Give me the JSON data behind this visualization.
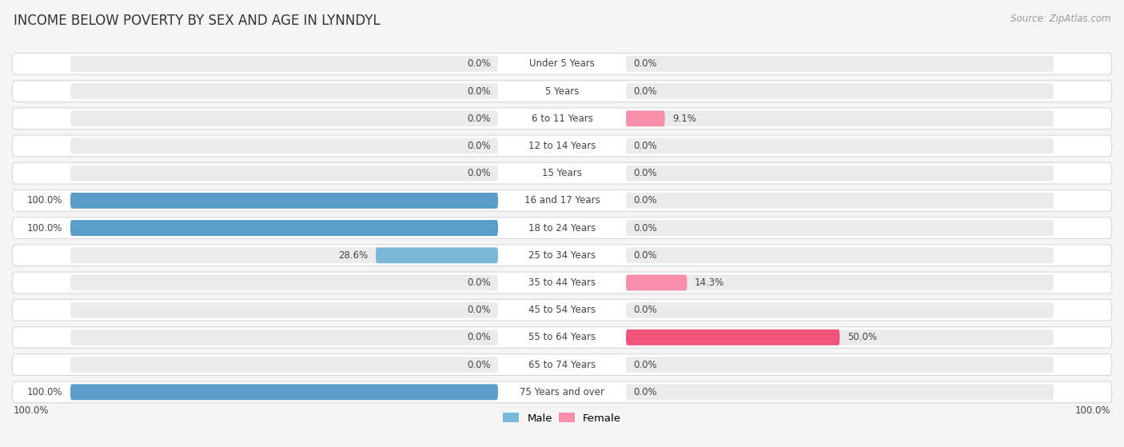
{
  "title": "INCOME BELOW POVERTY BY SEX AND AGE IN LYNNDYL",
  "source": "Source: ZipAtlas.com",
  "categories": [
    "Under 5 Years",
    "5 Years",
    "6 to 11 Years",
    "12 to 14 Years",
    "15 Years",
    "16 and 17 Years",
    "18 to 24 Years",
    "25 to 34 Years",
    "35 to 44 Years",
    "45 to 54 Years",
    "55 to 64 Years",
    "65 to 74 Years",
    "75 Years and over"
  ],
  "male_values": [
    0.0,
    0.0,
    0.0,
    0.0,
    0.0,
    100.0,
    100.0,
    28.6,
    0.0,
    0.0,
    0.0,
    0.0,
    100.0
  ],
  "female_values": [
    0.0,
    0.0,
    9.1,
    0.0,
    0.0,
    0.0,
    0.0,
    0.0,
    14.3,
    0.0,
    50.0,
    0.0,
    0.0
  ],
  "male_color_light": "#a8cfe8",
  "male_color_mid": "#7ab8d9",
  "male_color_full": "#5b9dc9",
  "female_color_light": "#f9bece",
  "female_color_mid": "#f78fab",
  "female_color_full": "#f0547a",
  "male_label": "Male",
  "female_label": "Female",
  "bar_bg": "#ebebeb",
  "row_bg": "#ffffff",
  "row_border": "#d8d8d8",
  "title_fontsize": 12,
  "source_fontsize": 8.5,
  "tick_fontsize": 8.5,
  "label_fontsize": 8.5,
  "cat_fontsize": 8.5
}
